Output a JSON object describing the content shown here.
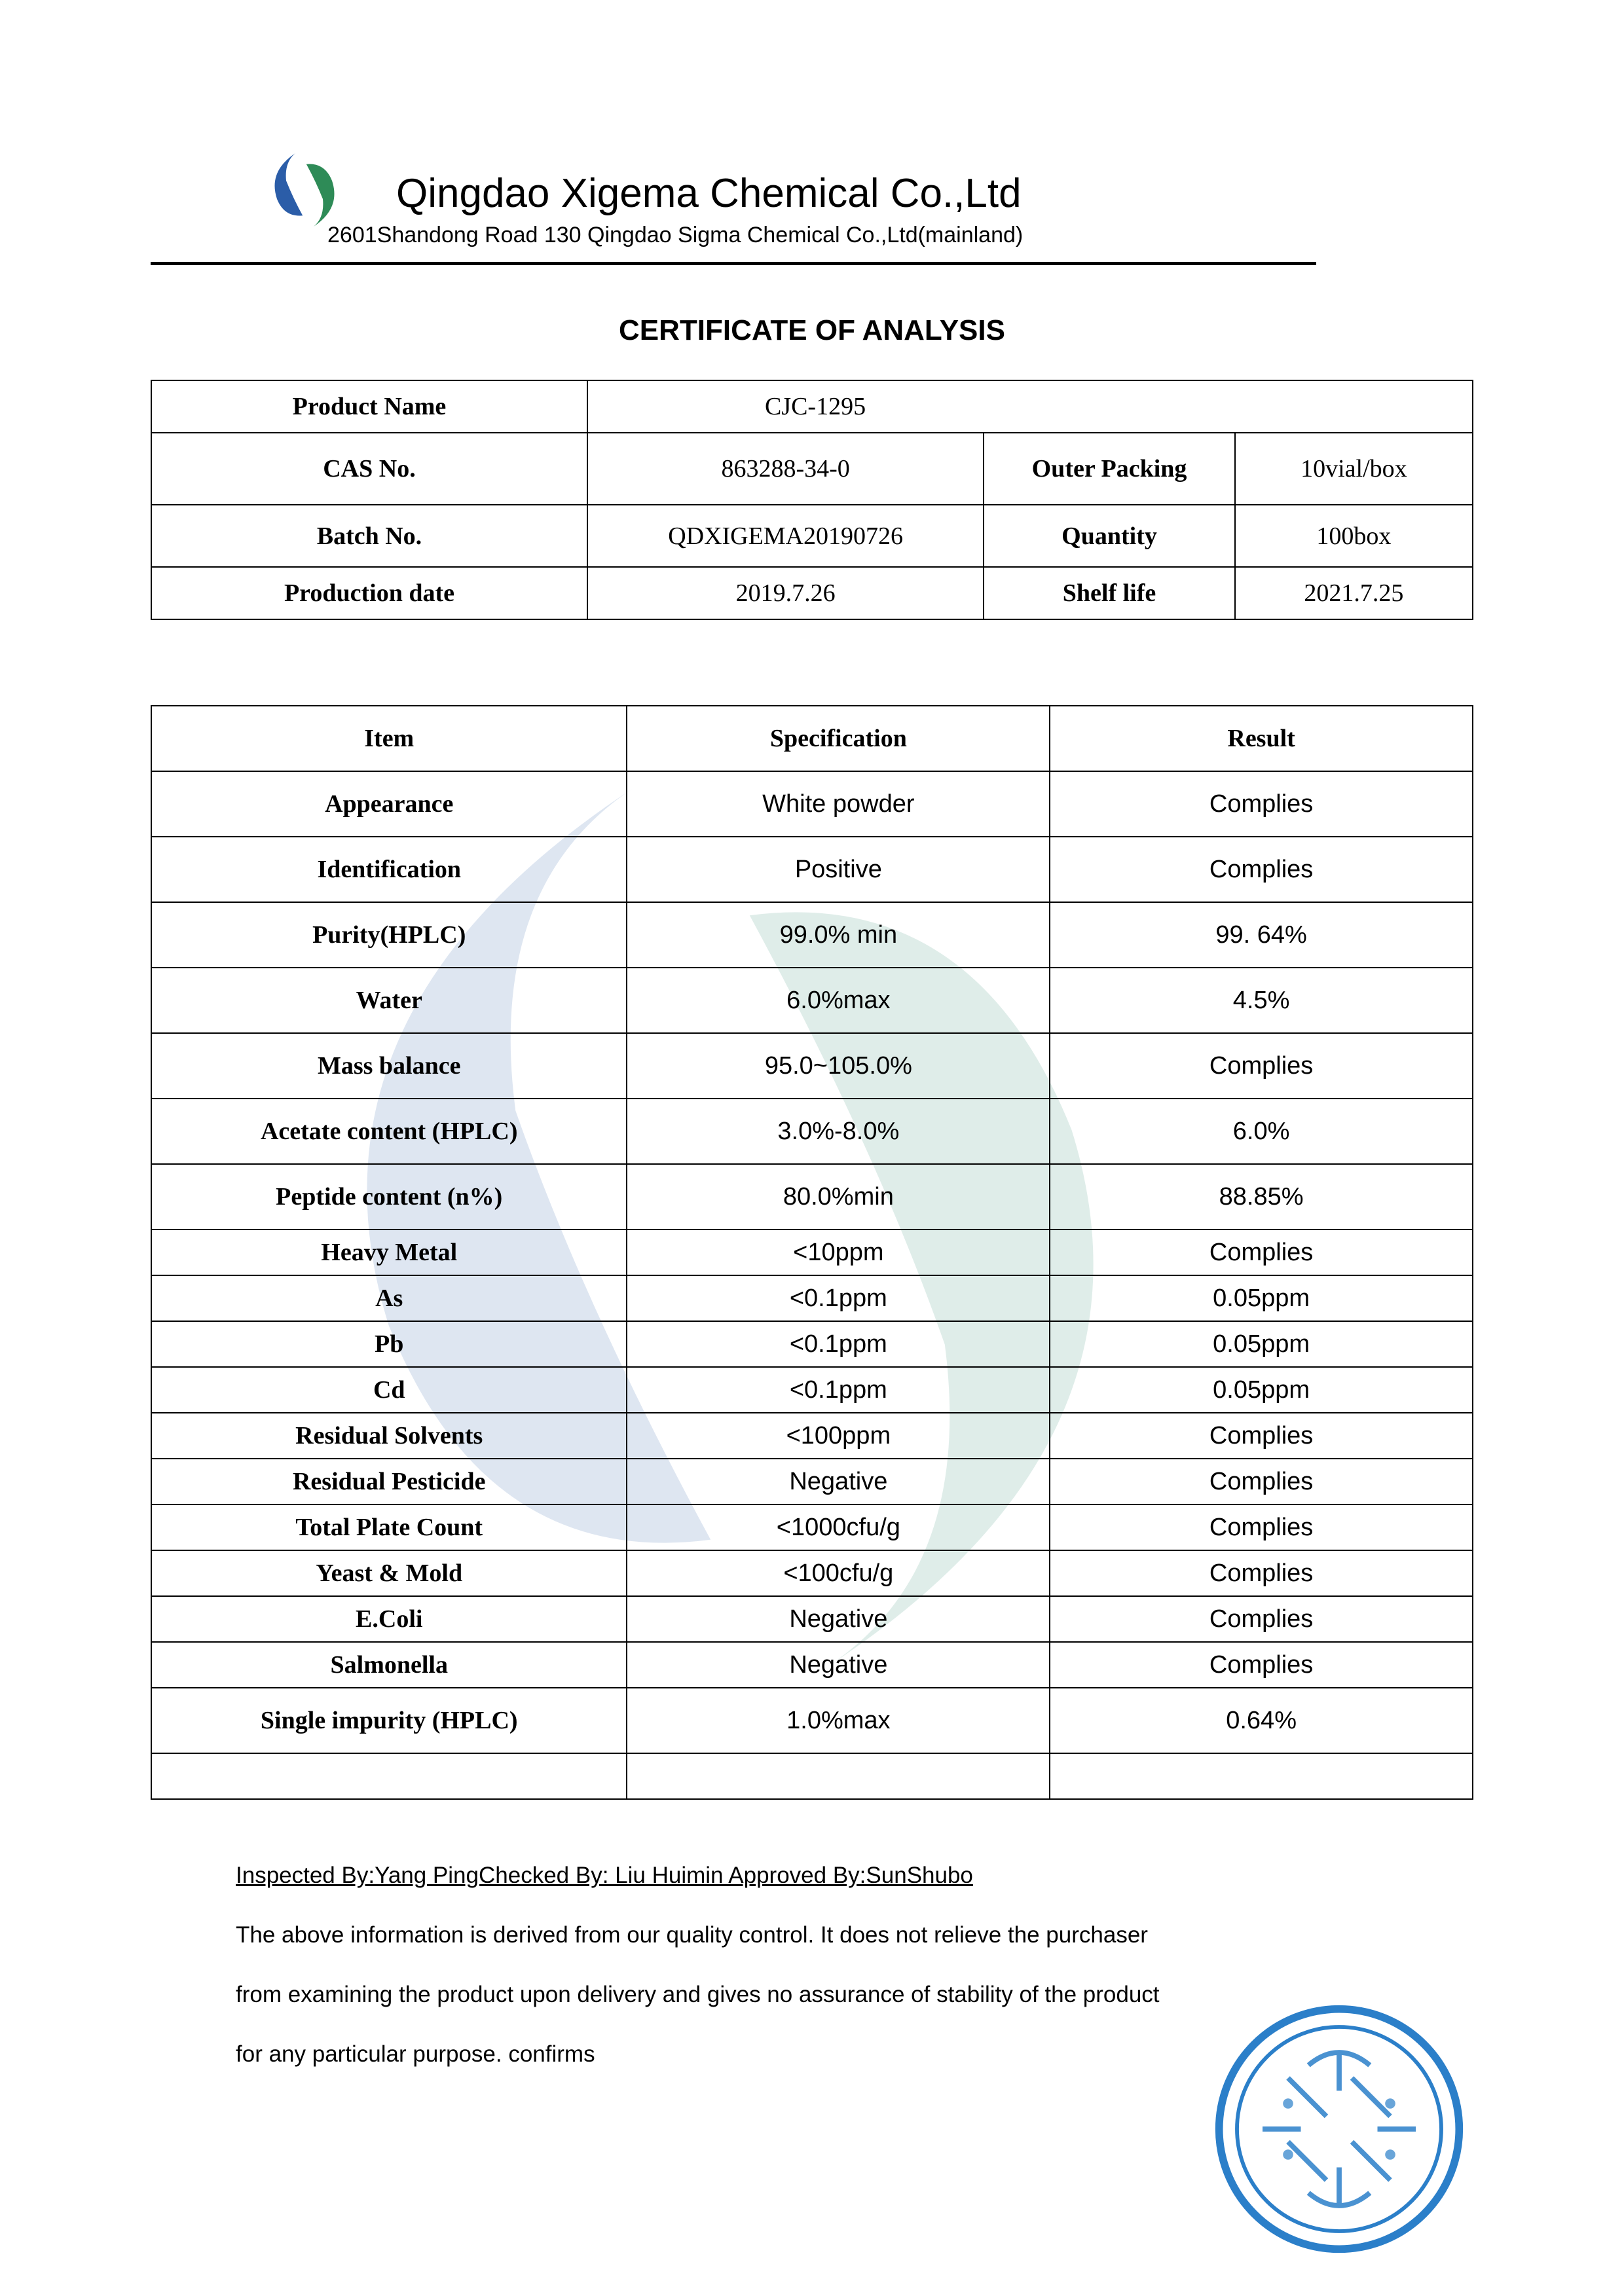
{
  "company": {
    "name": "Qingdao Xigema Chemical Co.,Ltd",
    "address": "2601Shandong Road 130 Qingdao Sigma Chemical Co.,Ltd(mainland)"
  },
  "doc_title": "CERTIFICATE OF ANALYSIS",
  "logo_colors": {
    "blue": "#2b5da8",
    "green": "#2e8b57"
  },
  "product": {
    "labels": {
      "product_name": "Product Name",
      "cas_no": "CAS No.",
      "batch_no": "Batch No.",
      "production_date": "Production date",
      "outer_packing": "Outer Packing",
      "quantity": "Quantity",
      "shelf_life": "Shelf life"
    },
    "product_name": "CJC-1295",
    "cas_no": "863288-34-0",
    "outer_packing": "10vial/box",
    "batch_no": "QDXIGEMA20190726",
    "quantity": "100box",
    "production_date": "2019.7.26",
    "shelf_life": "2021.7.25"
  },
  "spec_headers": {
    "item": "Item",
    "spec": "Specification",
    "result": "Result"
  },
  "spec_rows": [
    {
      "item": "Appearance",
      "spec": "White powder",
      "result": "Complies",
      "tall": true
    },
    {
      "item": "Identification",
      "spec": "Positive",
      "result": "Complies",
      "tall": true
    },
    {
      "item": "Purity(HPLC)",
      "spec": "99.0% min",
      "result": "99. 64%",
      "tall": true
    },
    {
      "item": "Water",
      "spec": "6.0%max",
      "result": "4.5%",
      "tall": true
    },
    {
      "item": "Mass balance",
      "spec": "95.0~105.0%",
      "result": "Complies",
      "tall": true
    },
    {
      "item": "Acetate content (HPLC)",
      "spec": "3.0%-8.0%",
      "result": "6.0%",
      "tall": true
    },
    {
      "item": "Peptide content (n%)",
      "spec": "80.0%min",
      "result": "88.85%",
      "tall": true
    },
    {
      "item": "Heavy Metal",
      "spec": "<10ppm",
      "result": "Complies"
    },
    {
      "item": "As",
      "spec": "<0.1ppm",
      "result": "0.05ppm"
    },
    {
      "item": "Pb",
      "spec": "<0.1ppm",
      "result": "0.05ppm"
    },
    {
      "item": "Cd",
      "spec": "<0.1ppm",
      "result": "0.05ppm"
    },
    {
      "item": "Residual Solvents",
      "spec": "<100ppm",
      "result": "Complies"
    },
    {
      "item": "Residual Pesticide",
      "spec": "Negative",
      "result": "Complies"
    },
    {
      "item": "Total Plate Count",
      "spec": "<1000cfu/g",
      "result": "Complies"
    },
    {
      "item": "Yeast & Mold",
      "spec": "<100cfu/g",
      "result": "Complies"
    },
    {
      "item": "E.Coli",
      "spec": "Negative",
      "result": "Complies"
    },
    {
      "item": "Salmonella",
      "spec": "Negative",
      "result": "Complies"
    },
    {
      "item": "Single impurity (HPLC)",
      "spec": "1.0%max",
      "result": "0.64%",
      "tall": true
    }
  ],
  "footer": {
    "inspected": "Inspected By:Yang PingChecked By: Liu Huimin Approved By:SunShubo",
    "line1": "The above information is derived from our quality control. It does not relieve the purchaser",
    "line2": "from examining the product upon delivery and gives no assurance of stability of the product",
    "line3": "for any particular purpose. confirms"
  },
  "stamp_color": "#2b7fc9",
  "watermark_color": "#2e8b74",
  "col_widths": {
    "product_c1": "33%",
    "product_c2": "30%",
    "product_c3": "19%",
    "product_c4": "18%",
    "spec_c1": "36%",
    "spec_c2": "32%",
    "spec_c3": "32%"
  }
}
